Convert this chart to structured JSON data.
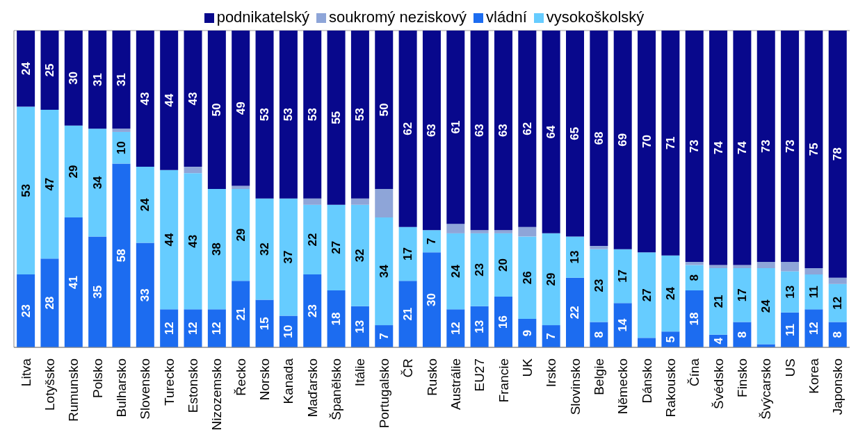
{
  "chart_data": {
    "type": "bar",
    "stacked": true,
    "categories": [
      "Litva",
      "Lotyšsko",
      "Rumunsko",
      "Polsko",
      "Bulharsko",
      "Slovensko",
      "Turecko",
      "Estonsko",
      "Nizozemsko",
      "Řecko",
      "Norsko",
      "Kanada",
      "Maďarsko",
      "Španělsko",
      "Itálie",
      "Portugalsko",
      "ČR",
      "Rusko",
      "Austrálie",
      "EU27",
      "Francie",
      "UK",
      "Irsko",
      "Slovinsko",
      "Belgie",
      "Německo",
      "Dánsko",
      "Rakousko",
      "Čína",
      "Švédsko",
      "Finsko",
      "Švýcarsko",
      "US",
      "Korea",
      "Japonsko"
    ],
    "series": [
      {
        "name": "vládní",
        "color": "#1c6cf0",
        "values": [
          23,
          28,
          41,
          35,
          58,
          33,
          12,
          12,
          12,
          21,
          15,
          10,
          23,
          18,
          13,
          7,
          21,
          30,
          12,
          13,
          16,
          9,
          7,
          22,
          8,
          14,
          3,
          5,
          18,
          4,
          8,
          1,
          11,
          12,
          8
        ],
        "value_labels": [
          "23",
          "28",
          "41",
          "35",
          "58",
          "33",
          "12",
          "12",
          "12",
          "21",
          "15",
          "10",
          "23",
          "18",
          "13",
          "7",
          "21",
          "30",
          "12",
          "13",
          "16",
          "9",
          "7",
          "22",
          "8",
          "14",
          null,
          "5",
          "18",
          "4",
          "8",
          null,
          "11",
          "12",
          "8"
        ]
      },
      {
        "name": "vysokoškolský",
        "color": "#66ccff",
        "values": [
          53,
          47,
          29,
          34,
          10,
          24,
          44,
          43,
          38,
          29,
          32,
          37,
          22,
          27,
          32,
          34,
          17,
          7,
          24,
          23,
          20,
          26,
          29,
          13,
          23,
          17,
          27,
          24,
          8,
          21,
          17,
          24,
          13,
          11,
          12
        ],
        "value_labels": [
          "53",
          "47",
          "29",
          "34",
          "10",
          "24",
          "44",
          "43",
          "38",
          "29",
          "32",
          "37",
          "22",
          "27",
          "32",
          "34",
          "17",
          "7",
          "24",
          "23",
          "20",
          "26",
          "29",
          "13",
          "23",
          "17",
          "27",
          "24",
          "8",
          "21",
          "17",
          "24",
          "13",
          "11",
          "12"
        ]
      },
      {
        "name": "soukromý neziskový",
        "color": "#8ea5d8",
        "values": [
          0,
          0,
          0,
          0,
          1,
          0,
          0,
          2,
          0,
          1,
          0,
          0,
          2,
          0,
          2,
          9,
          0,
          0,
          3,
          1,
          1,
          3,
          0,
          0,
          1,
          0,
          0,
          0,
          1,
          1,
          1,
          2,
          3,
          2,
          2
        ]
      },
      {
        "name": "podnikatelský",
        "color": "#08088c",
        "values": [
          24,
          25,
          30,
          31,
          31,
          43,
          44,
          43,
          50,
          49,
          53,
          53,
          53,
          55,
          53,
          50,
          62,
          63,
          61,
          63,
          63,
          62,
          64,
          65,
          68,
          69,
          70,
          71,
          73,
          74,
          74,
          73,
          73,
          75,
          78
        ],
        "value_labels": [
          "24",
          "25",
          "30",
          "31",
          "31",
          "43",
          "44",
          "43",
          "50",
          "49",
          "53",
          "53",
          "53",
          "55",
          "53",
          "50",
          "62",
          "63",
          "61",
          "63",
          "63",
          "62",
          "64",
          "65",
          "68",
          "69",
          "70",
          "71",
          "73",
          "74",
          "74",
          "73",
          "73",
          "75",
          "78"
        ]
      }
    ],
    "ylim": [
      0,
      100
    ],
    "tick_labels": "x",
    "grid": "y",
    "legend": "top"
  }
}
